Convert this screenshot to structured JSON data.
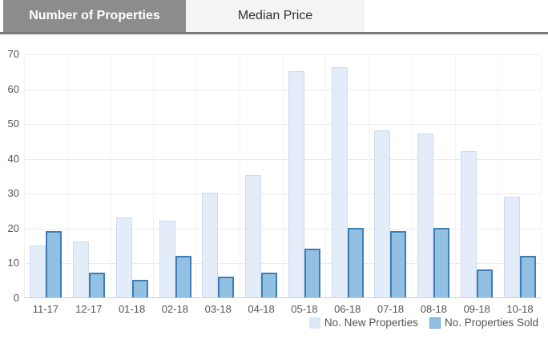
{
  "tabs": [
    {
      "label": "Number of Properties",
      "active": true
    },
    {
      "label": "Median Price",
      "active": false
    }
  ],
  "chart_data": {
    "type": "bar",
    "categories": [
      "11-17",
      "12-17",
      "01-18",
      "02-18",
      "03-18",
      "04-18",
      "05-18",
      "06-18",
      "07-18",
      "08-18",
      "09-18",
      "10-18"
    ],
    "series": [
      {
        "name": "No. New Properties",
        "values": [
          15,
          16,
          23,
          22,
          30,
          35,
          65,
          66,
          48,
          47,
          42,
          29
        ],
        "fill": "#e3ecf8",
        "border": "#cddcf0"
      },
      {
        "name": "No. Properties Sold",
        "values": [
          19,
          7,
          5,
          12,
          6,
          7,
          14,
          20,
          19,
          20,
          8,
          12
        ],
        "fill": "#92c0e2",
        "border": "#3e7db6"
      }
    ],
    "ylim": [
      0,
      70
    ],
    "yticks": [
      0,
      10,
      20,
      30,
      40,
      50,
      60,
      70
    ],
    "grid": true,
    "legend_position": "bottom-right"
  },
  "colors": {
    "tab_active_bg": "#8c8c8c",
    "tab_active_text": "#ffffff",
    "tab_inactive_bg": "#f4f4f4",
    "tab_underline": "#797979",
    "gridline": "#ececec",
    "axis_line": "#cfcfcf",
    "axis_text": "#555555"
  }
}
